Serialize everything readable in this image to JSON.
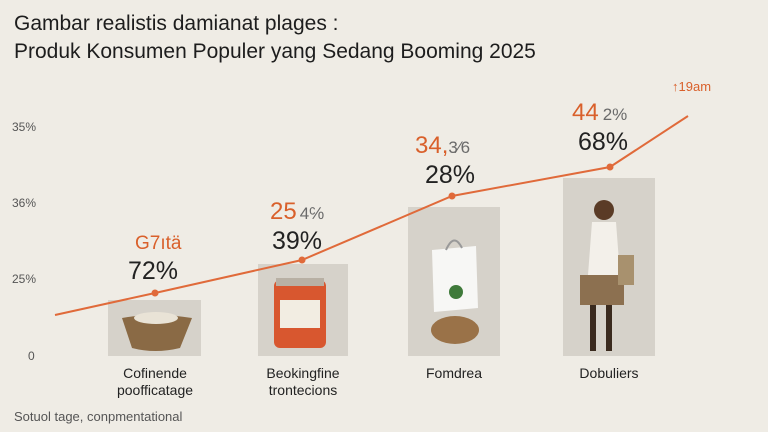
{
  "title": {
    "line1": "Gambar realistis damianat plages :",
    "line2": "Produk Konsumen Populer yang Sedang Booming 2025"
  },
  "y_axis_labels": [
    "35%",
    "36%",
    "25%",
    "0"
  ],
  "line_end_label": "19am",
  "items": [
    {
      "accent": "G7ıtä",
      "percent": "72%",
      "label": [
        "Cofinende",
        "poofficatage"
      ]
    },
    {
      "accent": "25",
      "rest": "4℅",
      "percent": "39%",
      "label": [
        "Beokingfine",
        "trontecions"
      ]
    },
    {
      "accent": "34,",
      "rest": "3⁄6",
      "percent": "28%",
      "label": [
        "Fomdrea"
      ]
    },
    {
      "accent": "44",
      "rest": "2%",
      "percent": "68%",
      "label": [
        "Dobuliers"
      ]
    }
  ],
  "footnote": "Sotuol tage, conpmentational"
}
